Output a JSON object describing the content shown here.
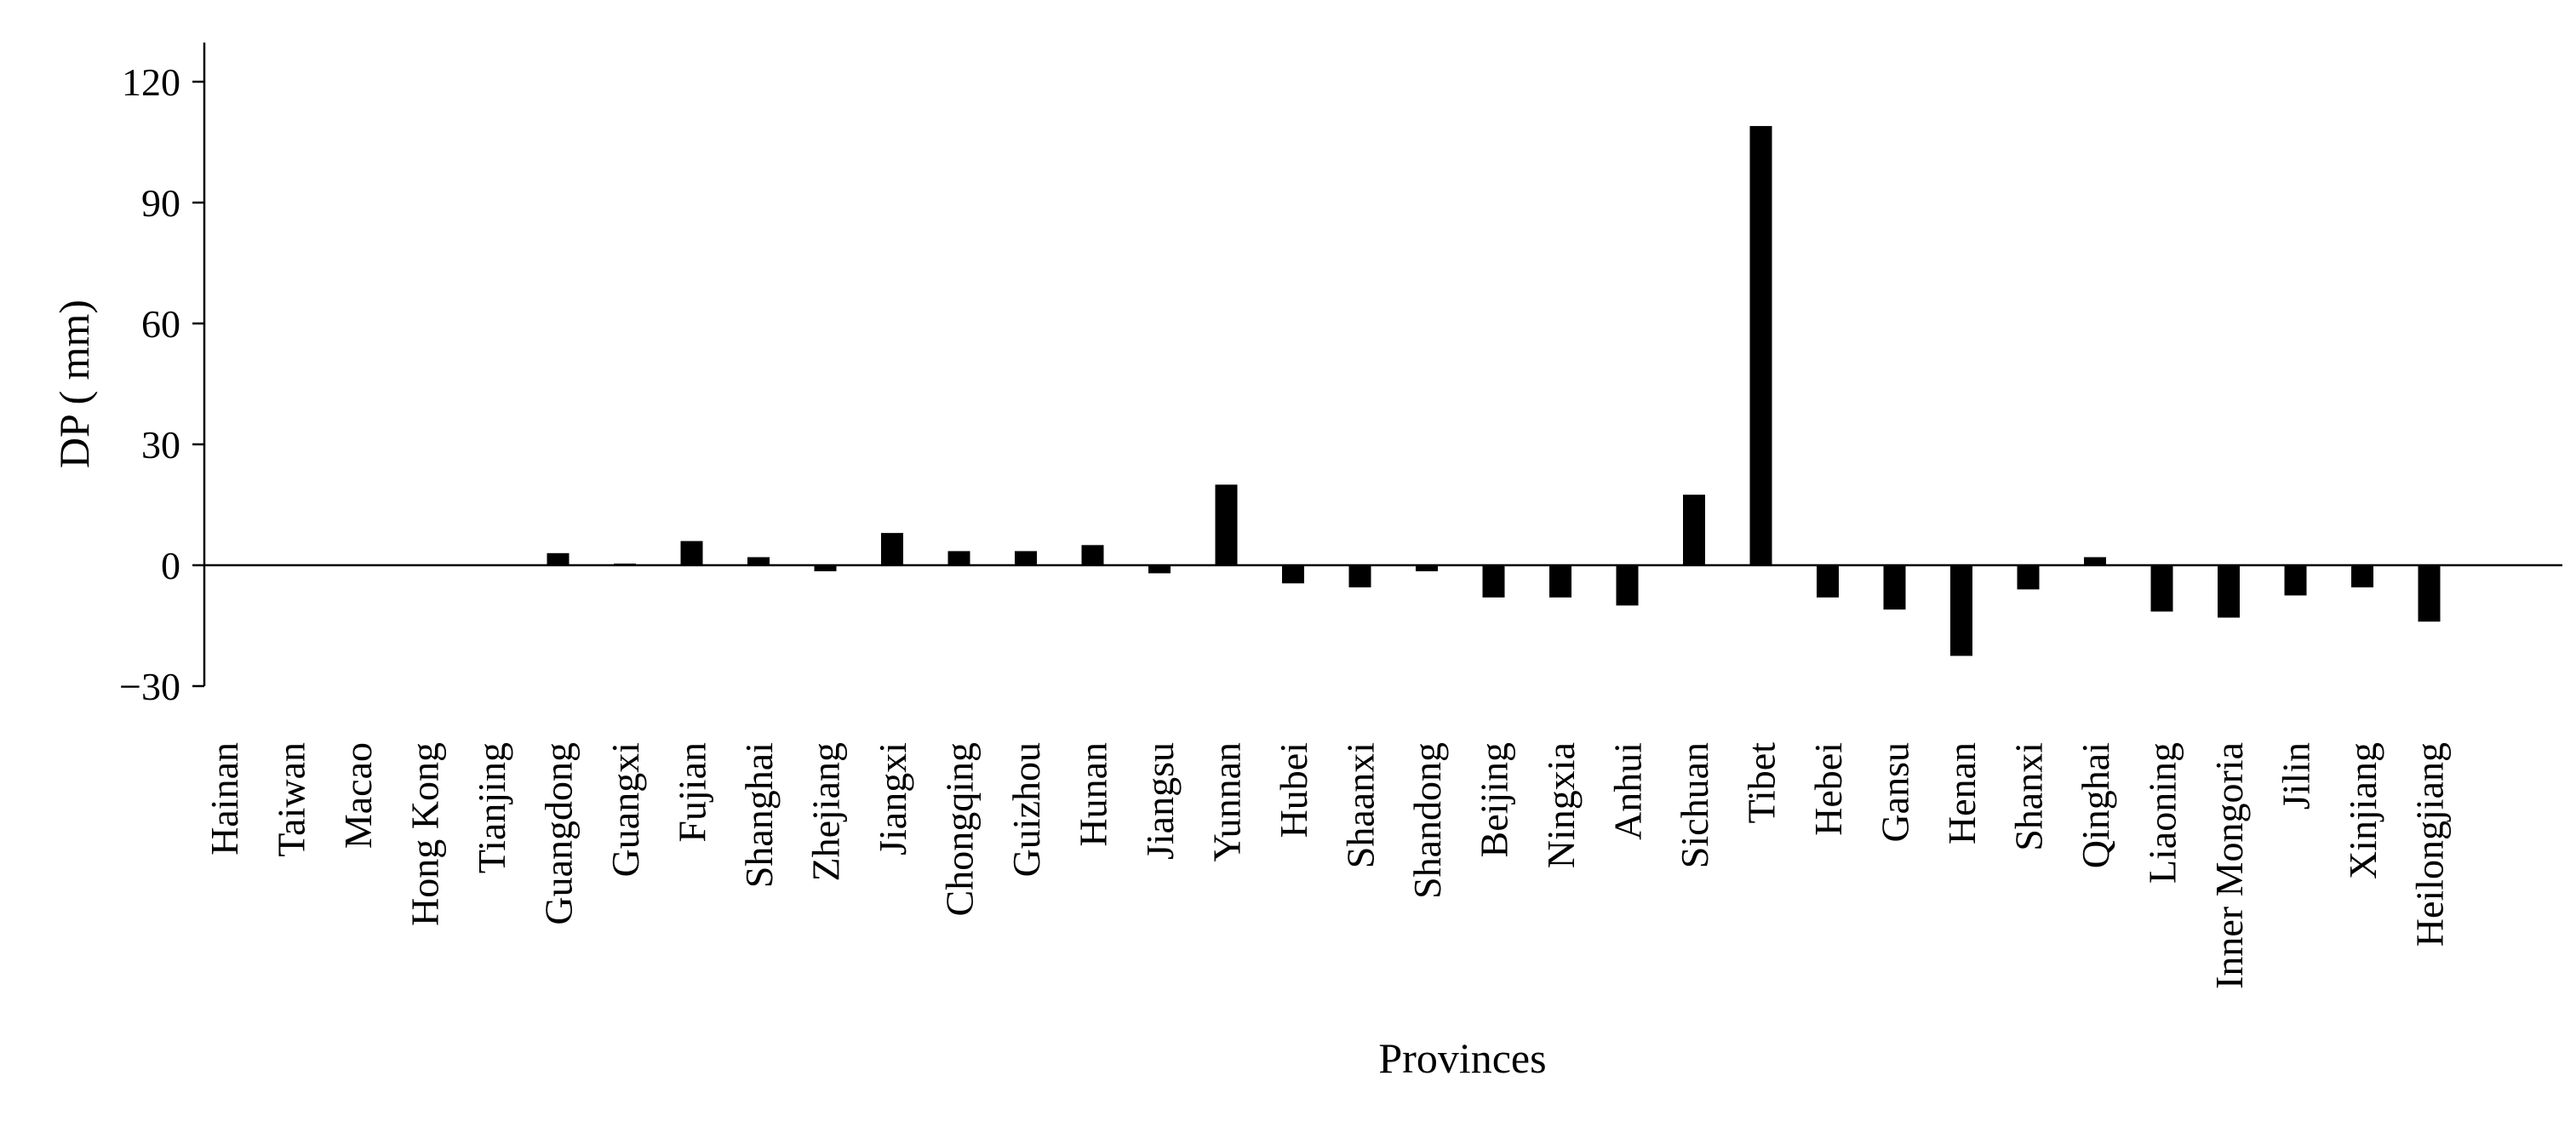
{
  "chart_data": {
    "type": "bar",
    "xlabel": "Provinces",
    "ylabel": "DP ( mm)",
    "ylim": [
      -30,
      120
    ],
    "yticks": [
      120,
      90,
      60,
      30,
      0,
      -30
    ],
    "ytick_labels": [
      "120",
      "90",
      "60",
      "30",
      "0",
      "−30"
    ],
    "grid": false,
    "bar_color": "#000000",
    "categories": [
      "Hainan",
      "Taiwan",
      "Macao",
      "Hong Kong",
      "Tianjing",
      "Guangdong",
      "Guangxi",
      "Fujian",
      "Shanghai",
      "Zhejiang",
      "Jiangxi",
      "Chongqing",
      "Guizhou",
      "Hunan",
      "Jiangsu",
      "Yunnan",
      "Hubei",
      "Shaanxi",
      "Shandong",
      "Beijing",
      "Ningxia",
      "Anhui",
      "Sichuan",
      "Tibet",
      "Hebei",
      "Gansu",
      "Henan",
      "Shanxi",
      "Qinghai",
      "Liaoning",
      "Inner Mongoria",
      "Jilin",
      "Xinjiang",
      "Heilongjiang"
    ],
    "values": [
      0,
      0,
      0,
      0,
      0,
      3,
      0.4,
      6,
      2,
      -1.5,
      8,
      3.5,
      3.5,
      5,
      -2,
      20,
      -4.5,
      -5.5,
      -1.5,
      -8,
      -8,
      -10,
      17.5,
      109,
      -8,
      -11,
      -22.5,
      -6,
      2,
      -11.5,
      -13,
      -7.5,
      -5.5,
      -14
    ]
  }
}
